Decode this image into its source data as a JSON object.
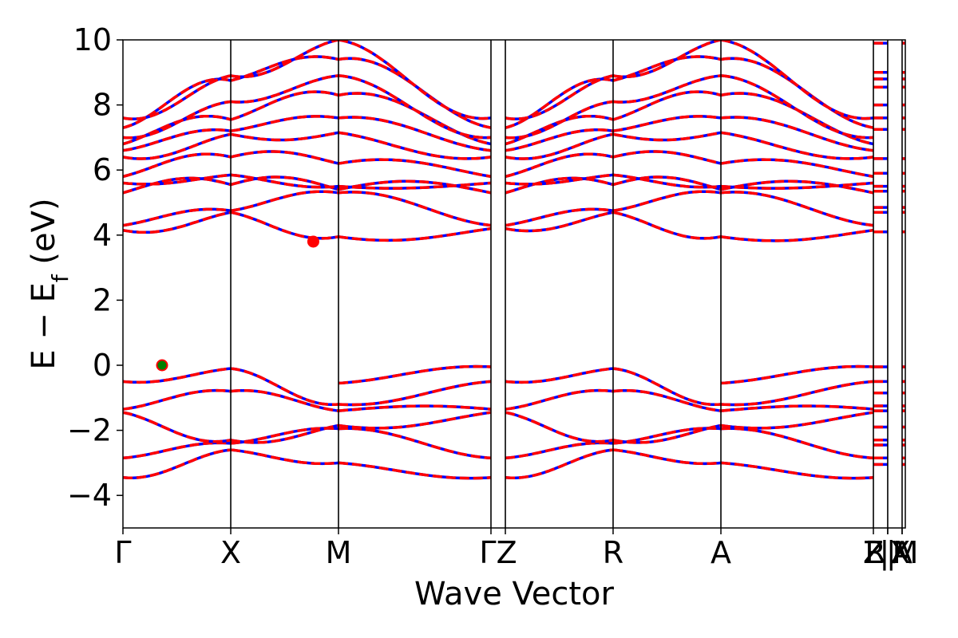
{
  "chart_data": {
    "type": "line",
    "xlabel": "Wave Vector",
    "ylabel": "E − E_f (eV)",
    "ylabel_main": "E − E",
    "ylabel_sub": "f",
    "ylabel_unit": " (eV)",
    "ylim": [
      -5,
      10
    ],
    "yticks": [
      -4,
      -2,
      0,
      2,
      4,
      6,
      8,
      10
    ],
    "ytick_labels": [
      "−4",
      "−2",
      "0",
      "2",
      "4",
      "6",
      "8",
      "10"
    ],
    "x_range": [
      0,
      1
    ],
    "k_points": [
      {
        "label": "Γ",
        "x": 0.0
      },
      {
        "label": "X",
        "x": 0.1378
      },
      {
        "label": "M",
        "x": 0.2755
      },
      {
        "label": "Γ",
        "x": 0.4704
      },
      {
        "label": "Z",
        "x": 0.4888
      },
      {
        "label": "R",
        "x": 0.6265
      },
      {
        "label": "A",
        "x": 0.7643
      },
      {
        "label": "Z",
        "x": 0.9592
      },
      {
        "label": "R",
        "x": 0.9775
      },
      {
        "label": "X",
        "x": 0.9775
      },
      {
        "label": "A",
        "x": 0.9959
      },
      {
        "label": "M",
        "x": 0.9959
      }
    ],
    "x_tick_labels": [
      {
        "text": "Γ",
        "x": 0.0
      },
      {
        "text": "X",
        "x": 0.1378
      },
      {
        "text": "M",
        "x": 0.2755
      },
      {
        "text": "ΓZ",
        "x": 0.4796
      },
      {
        "text": "R",
        "x": 0.6265
      },
      {
        "text": "A",
        "x": 0.7643
      },
      {
        "text": "Z",
        "x": 0.9592
      },
      {
        "text": "R|",
        "x": 0.9684
      },
      {
        "text": "|X",
        "x": 0.9867
      },
      {
        "text": "A",
        "x": 0.9959
      },
      {
        "text": "M",
        "x": 1.0
      }
    ],
    "conduction_bands_eV": {
      "G": [
        4.15,
        4.3,
        5.3,
        5.6,
        5.8,
        6.4,
        6.6,
        6.8,
        7.0,
        7.3,
        7.6,
        8.0,
        8.6,
        9.05
      ],
      "X": [
        4.7,
        4.75,
        5.55,
        5.85,
        6.4,
        7.1,
        7.2,
        7.55,
        8.1,
        8.75,
        8.9
      ],
      "M": [
        3.95,
        5.3,
        5.4,
        5.5,
        6.2,
        7.15,
        7.6,
        8.3,
        8.9,
        9.4,
        10.0
      ],
      "Gamma2": [
        4.2,
        4.3,
        5.3,
        5.6,
        5.8,
        6.4,
        6.6,
        6.8,
        7.0,
        7.3,
        7.6,
        8.0,
        8.6,
        9.05
      ]
    },
    "valence_bands_eV": {
      "G": [
        0.0,
        -0.05,
        -0.5,
        -1.35,
        -1.45,
        -2.85,
        -3.45
      ],
      "X": [
        -0.1,
        -0.8,
        -2.3,
        -2.4,
        -2.6
      ],
      "M": [
        -0.55,
        -1.2,
        -1.4,
        -1.85,
        -1.95,
        -3.0
      ],
      "Gamma2": [
        0.0,
        -0.05,
        -0.5,
        -1.35,
        -1.45,
        -2.85,
        -3.45
      ]
    },
    "series": [
      {
        "name": "",
        "color": "#0000ff",
        "style": "solid"
      },
      {
        "name": "",
        "color": "#ff0000",
        "style": "dashed"
      }
    ],
    "markers": [
      {
        "type": "VBM",
        "x": 0.05,
        "y": 0.0,
        "color": "#008000",
        "edge": "#ff0000"
      },
      {
        "type": "CBM",
        "x": 0.2433,
        "y": 3.8,
        "color": "#ff0000",
        "edge": "#ff0000"
      }
    ]
  }
}
